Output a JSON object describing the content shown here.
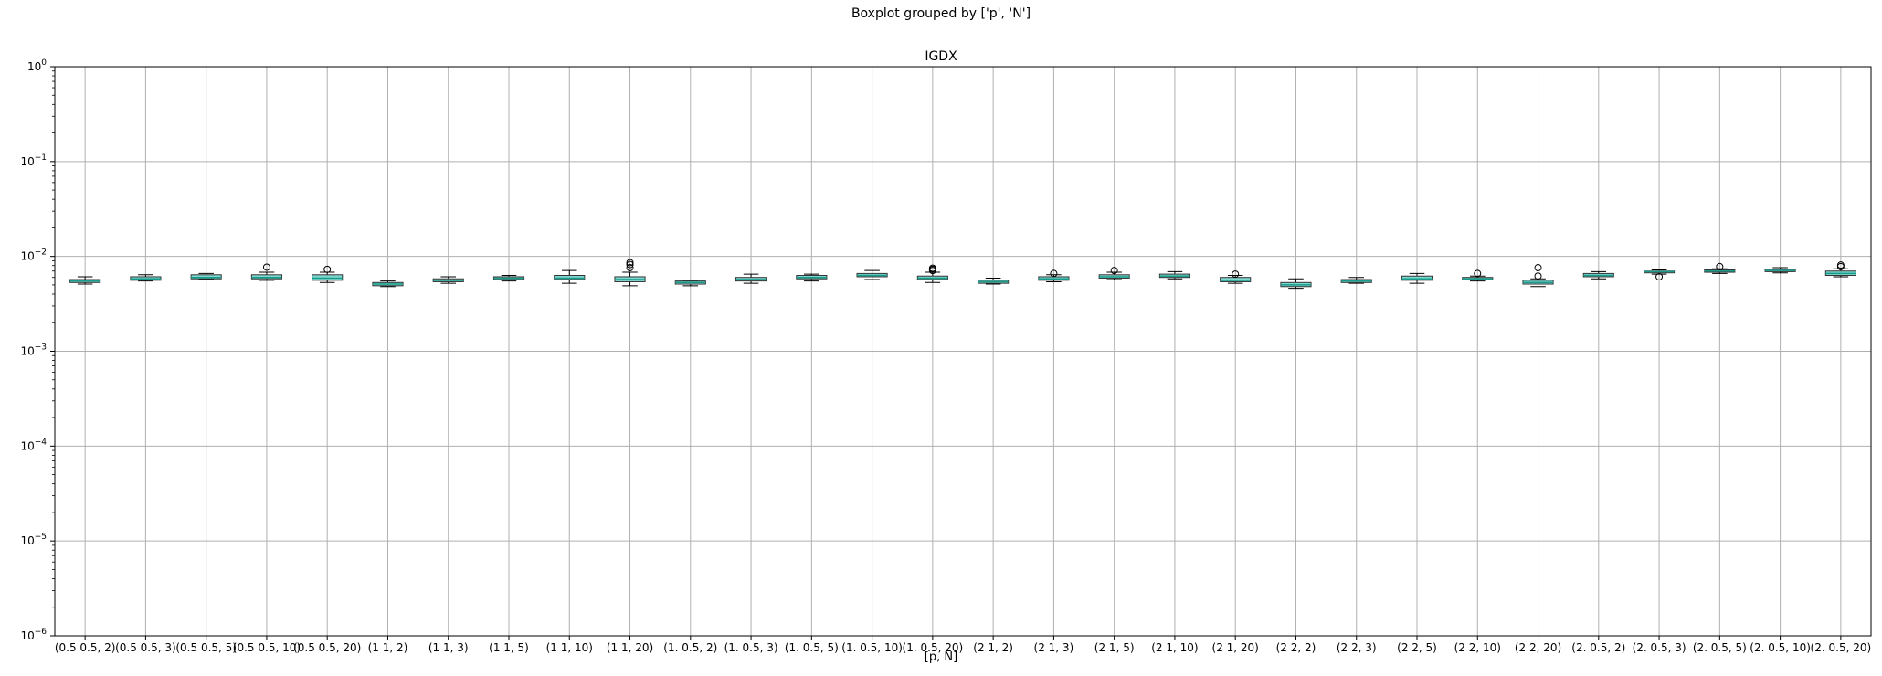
{
  "chart_data": {
    "type": "box",
    "suptitle": "Boxplot grouped by ['p', 'N']",
    "title": "IGDX",
    "xlabel": "[p, N]",
    "ylabel": "",
    "yscale": "log",
    "ylim": [
      1e-06,
      1
    ],
    "ytick_labels": [
      {
        "base": "10",
        "exp": "0",
        "value": 1
      },
      {
        "base": "10",
        "exp": "−1",
        "value": 0.1
      },
      {
        "base": "10",
        "exp": "−2",
        "value": 0.01
      },
      {
        "base": "10",
        "exp": "−3",
        "value": 0.001
      },
      {
        "base": "10",
        "exp": "−4",
        "value": 0.0001
      },
      {
        "base": "10",
        "exp": "−5",
        "value": 1e-05
      },
      {
        "base": "10",
        "exp": "−6",
        "value": 1e-06
      }
    ],
    "grid": true,
    "box_color": "#7fd8d0",
    "median_color": "#1a9a8a",
    "categories": [
      "(0.5 0.5, 2)",
      "(0.5 0.5, 3)",
      "(0.5 0.5, 5)",
      "(0.5 0.5, 10)",
      "(0.5 0.5, 20)",
      "(1 1, 2)",
      "(1 1, 3)",
      "(1 1, 5)",
      "(1 1, 10)",
      "(1 1, 20)",
      "(1. 0.5, 2)",
      "(1. 0.5, 3)",
      "(1. 0.5, 5)",
      "(1. 0.5, 10)",
      "(1. 0.5, 20)",
      "(2 1, 2)",
      "(2 1, 3)",
      "(2 1, 5)",
      "(2 1, 10)",
      "(2 1, 20)",
      "(2 2, 2)",
      "(2 2, 3)",
      "(2 2, 5)",
      "(2 2, 10)",
      "(2 2, 20)",
      "(2. 0.5, 2)",
      "(2. 0.5, 3)",
      "(2. 0.5, 5)",
      "(2. 0.5, 10)",
      "(2. 0.5, 20)"
    ],
    "boxes": [
      {
        "whislo": 0.0051,
        "q1": 0.0053,
        "med": 0.0055,
        "q3": 0.0057,
        "whishi": 0.0061,
        "fliers": []
      },
      {
        "whislo": 0.0055,
        "q1": 0.0056,
        "med": 0.0058,
        "q3": 0.0061,
        "whishi": 0.0064,
        "fliers": []
      },
      {
        "whislo": 0.0057,
        "q1": 0.0058,
        "med": 0.006,
        "q3": 0.0064,
        "whishi": 0.0066,
        "fliers": []
      },
      {
        "whislo": 0.0056,
        "q1": 0.0058,
        "med": 0.006,
        "q3": 0.0064,
        "whishi": 0.0068,
        "fliers": [
          0.0077
        ]
      },
      {
        "whislo": 0.0053,
        "q1": 0.0056,
        "med": 0.0059,
        "q3": 0.0064,
        "whishi": 0.0068,
        "fliers": [
          0.0073
        ]
      },
      {
        "whislo": 0.0048,
        "q1": 0.0049,
        "med": 0.0051,
        "q3": 0.0053,
        "whishi": 0.0055,
        "fliers": []
      },
      {
        "whislo": 0.0052,
        "q1": 0.0054,
        "med": 0.0056,
        "q3": 0.0058,
        "whishi": 0.0061,
        "fliers": []
      },
      {
        "whislo": 0.0055,
        "q1": 0.0057,
        "med": 0.0059,
        "q3": 0.0061,
        "whishi": 0.0063,
        "fliers": []
      },
      {
        "whislo": 0.0052,
        "q1": 0.0057,
        "med": 0.0059,
        "q3": 0.0063,
        "whishi": 0.0071,
        "fliers": []
      },
      {
        "whislo": 0.0049,
        "q1": 0.0054,
        "med": 0.0057,
        "q3": 0.0061,
        "whishi": 0.0068,
        "fliers": [
          0.0076,
          0.0082,
          0.0086
        ]
      },
      {
        "whislo": 0.0049,
        "q1": 0.0051,
        "med": 0.0053,
        "q3": 0.0055,
        "whishi": 0.0056,
        "fliers": []
      },
      {
        "whislo": 0.0052,
        "q1": 0.0055,
        "med": 0.0057,
        "q3": 0.006,
        "whishi": 0.0065,
        "fliers": []
      },
      {
        "whislo": 0.0055,
        "q1": 0.0058,
        "med": 0.006,
        "q3": 0.0063,
        "whishi": 0.0065,
        "fliers": []
      },
      {
        "whislo": 0.0057,
        "q1": 0.0061,
        "med": 0.0063,
        "q3": 0.0066,
        "whishi": 0.0071,
        "fliers": []
      },
      {
        "whislo": 0.0053,
        "q1": 0.0057,
        "med": 0.0059,
        "q3": 0.0062,
        "whishi": 0.0068,
        "fliers": [
          0.0071,
          0.0073,
          0.0075
        ]
      },
      {
        "whislo": 0.0051,
        "q1": 0.0052,
        "med": 0.0054,
        "q3": 0.0056,
        "whishi": 0.0059,
        "fliers": []
      },
      {
        "whislo": 0.0054,
        "q1": 0.0056,
        "med": 0.0058,
        "q3": 0.0061,
        "whishi": 0.0064,
        "fliers": [
          0.0066
        ]
      },
      {
        "whislo": 0.0057,
        "q1": 0.0059,
        "med": 0.0061,
        "q3": 0.0064,
        "whishi": 0.0068,
        "fliers": [
          0.0071
        ]
      },
      {
        "whislo": 0.0058,
        "q1": 0.006,
        "med": 0.0062,
        "q3": 0.0065,
        "whishi": 0.0069,
        "fliers": []
      },
      {
        "whislo": 0.0052,
        "q1": 0.0054,
        "med": 0.0056,
        "q3": 0.006,
        "whishi": 0.0063,
        "fliers": [
          0.0065
        ]
      },
      {
        "whislo": 0.0046,
        "q1": 0.0048,
        "med": 0.005,
        "q3": 0.0053,
        "whishi": 0.0058,
        "fliers": []
      },
      {
        "whislo": 0.0052,
        "q1": 0.0053,
        "med": 0.0055,
        "q3": 0.0057,
        "whishi": 0.006,
        "fliers": []
      },
      {
        "whislo": 0.0052,
        "q1": 0.0056,
        "med": 0.0058,
        "q3": 0.0062,
        "whishi": 0.0066,
        "fliers": []
      },
      {
        "whislo": 0.0055,
        "q1": 0.0057,
        "med": 0.0058,
        "q3": 0.006,
        "whishi": 0.0062,
        "fliers": [
          0.0066
        ]
      },
      {
        "whislo": 0.0048,
        "q1": 0.0051,
        "med": 0.0053,
        "q3": 0.0056,
        "whishi": 0.0058,
        "fliers": [
          0.0062,
          0.0076
        ]
      },
      {
        "whislo": 0.0058,
        "q1": 0.0061,
        "med": 0.0063,
        "q3": 0.0066,
        "whishi": 0.0069,
        "fliers": []
      },
      {
        "whislo": 0.0065,
        "q1": 0.0067,
        "med": 0.0069,
        "q3": 0.007,
        "whishi": 0.0072,
        "fliers": [
          0.0061
        ]
      },
      {
        "whislo": 0.0066,
        "q1": 0.0068,
        "med": 0.007,
        "q3": 0.0072,
        "whishi": 0.0074,
        "fliers": [
          0.0078
        ]
      },
      {
        "whislo": 0.0067,
        "q1": 0.0069,
        "med": 0.0071,
        "q3": 0.0073,
        "whishi": 0.0076,
        "fliers": []
      },
      {
        "whislo": 0.0061,
        "q1": 0.0063,
        "med": 0.0066,
        "q3": 0.007,
        "whishi": 0.0074,
        "fliers": [
          0.0078,
          0.0081
        ]
      }
    ]
  }
}
